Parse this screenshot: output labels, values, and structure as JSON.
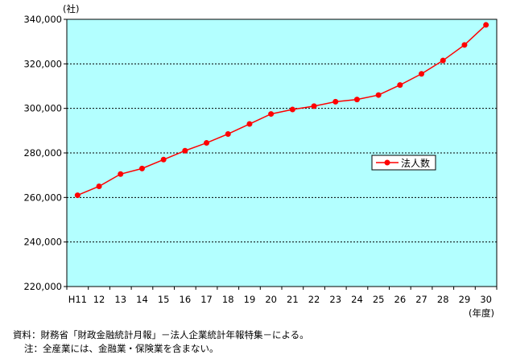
{
  "chart_data": {
    "type": "line",
    "title": "",
    "ylabel": "(社)",
    "xlabel": "(年度)",
    "categories": [
      "H11",
      "12",
      "13",
      "14",
      "15",
      "16",
      "17",
      "18",
      "19",
      "20",
      "21",
      "22",
      "23",
      "24",
      "25",
      "26",
      "27",
      "28",
      "29",
      "30"
    ],
    "ylim": [
      220000,
      340000
    ],
    "yticks": [
      220000,
      240000,
      260000,
      280000,
      300000,
      320000,
      340000
    ],
    "ytick_labels": [
      "220,000",
      "240,000",
      "260,000",
      "280,000",
      "300,000",
      "320,000",
      "340,000"
    ],
    "grid": "horizontal dashed",
    "legend_position": "right-middle",
    "plot_background": "#b3ffff",
    "series": [
      {
        "name": "法人数",
        "color": "#ff0000",
        "values": [
          261000,
          265000,
          270500,
          273000,
          277000,
          281000,
          284500,
          288500,
          293000,
          297500,
          299500,
          301000,
          303000,
          304000,
          306000,
          310500,
          315500,
          321500,
          328500,
          337500
        ]
      }
    ]
  },
  "notes": {
    "source": "資料：財務省「財政金融統計月報」－法人企業統計年報特集－による。",
    "footnote": "注：全産業には、金融業・保険業を含まない。"
  }
}
